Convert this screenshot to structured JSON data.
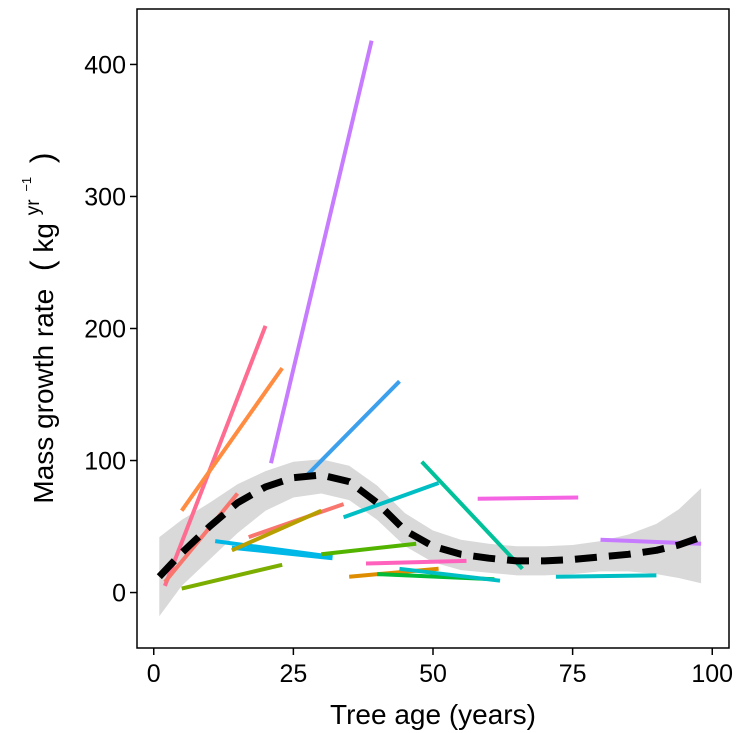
{
  "chart_data": {
    "type": "line",
    "xlabel": "Tree age (years)",
    "ylabel": {
      "text": "Mass growth rate",
      "unit_base": "kg",
      "unit_sup_base": "yr",
      "unit_sup_exp": "−1"
    },
    "xlim": [
      -3,
      103
    ],
    "ylim": [
      -42,
      442
    ],
    "xticks": [
      0,
      25,
      50,
      75,
      100
    ],
    "yticks": [
      0,
      100,
      200,
      300,
      400
    ],
    "grid": false,
    "legend": "none",
    "series": [
      {
        "color": "#C77CFF",
        "points": [
          [
            21,
            98
          ],
          [
            39,
            418
          ]
        ]
      },
      {
        "color": "#FF6C91",
        "points": [
          [
            2,
            5
          ],
          [
            20,
            202
          ]
        ]
      },
      {
        "color": "#F8766D",
        "points": [
          [
            2,
            8
          ],
          [
            15,
            75
          ]
        ]
      },
      {
        "color": "#FF8C40",
        "points": [
          [
            5,
            62
          ],
          [
            23,
            170
          ]
        ]
      },
      {
        "color": "#3CA0ED",
        "points": [
          [
            27,
            87
          ],
          [
            44,
            160
          ]
        ]
      },
      {
        "color": "#00C19A",
        "points": [
          [
            48,
            99
          ],
          [
            66,
            18
          ]
        ]
      },
      {
        "color": "#00BFC4",
        "points": [
          [
            34,
            57
          ],
          [
            51,
            83
          ]
        ]
      },
      {
        "color": "#F564E3",
        "points": [
          [
            58,
            71
          ],
          [
            76,
            72
          ]
        ]
      },
      {
        "color": "#00B8E7",
        "points": [
          [
            11,
            39
          ],
          [
            32,
            27
          ]
        ]
      },
      {
        "color": "#00B8E7",
        "points": [
          [
            14,
            34
          ],
          [
            32,
            26
          ]
        ]
      },
      {
        "color": "#F8766D",
        "points": [
          [
            17,
            42
          ],
          [
            34,
            67
          ]
        ]
      },
      {
        "color": "#B79F00",
        "points": [
          [
            14,
            32
          ],
          [
            30,
            62
          ]
        ]
      },
      {
        "color": "#53B400",
        "points": [
          [
            30,
            29
          ],
          [
            47,
            37
          ]
        ]
      },
      {
        "color": "#7CAE00",
        "points": [
          [
            5,
            3
          ],
          [
            23,
            21
          ]
        ]
      },
      {
        "color": "#DE8C00",
        "points": [
          [
            35,
            12
          ],
          [
            51,
            18
          ]
        ]
      },
      {
        "color": "#FF62BC",
        "points": [
          [
            38,
            22
          ],
          [
            56,
            24
          ]
        ]
      },
      {
        "color": "#00BA38",
        "points": [
          [
            40,
            14
          ],
          [
            61,
            10
          ]
        ]
      },
      {
        "color": "#00BFC4",
        "points": [
          [
            44,
            18
          ],
          [
            62,
            9
          ]
        ]
      },
      {
        "color": "#00BFC4",
        "points": [
          [
            72,
            12
          ],
          [
            90,
            13
          ]
        ]
      },
      {
        "color": "#C77CFF",
        "points": [
          [
            80,
            40
          ],
          [
            98,
            37
          ]
        ]
      }
    ],
    "trend": {
      "style": "black dashed smooth",
      "band_color": "#D9D9D9",
      "points": [
        [
          1,
          12,
          -18,
          42
        ],
        [
          5,
          30,
          5,
          55
        ],
        [
          10,
          50,
          25,
          68
        ],
        [
          15,
          68,
          45,
          82
        ],
        [
          20,
          80,
          62,
          92
        ],
        [
          25,
          87,
          72,
          99
        ],
        [
          30,
          89,
          75,
          101
        ],
        [
          35,
          84,
          70,
          96
        ],
        [
          40,
          68,
          55,
          81
        ],
        [
          45,
          47,
          35,
          60
        ],
        [
          50,
          35,
          23,
          47
        ],
        [
          55,
          29,
          17,
          40
        ],
        [
          60,
          26,
          15,
          37
        ],
        [
          65,
          24,
          13,
          35
        ],
        [
          70,
          24,
          13,
          35
        ],
        [
          75,
          25,
          14,
          36
        ],
        [
          80,
          27,
          16,
          39
        ],
        [
          85,
          29,
          16,
          44
        ],
        [
          90,
          32,
          14,
          52
        ],
        [
          94,
          36,
          11,
          63
        ],
        [
          98,
          42,
          7,
          79
        ]
      ]
    }
  }
}
